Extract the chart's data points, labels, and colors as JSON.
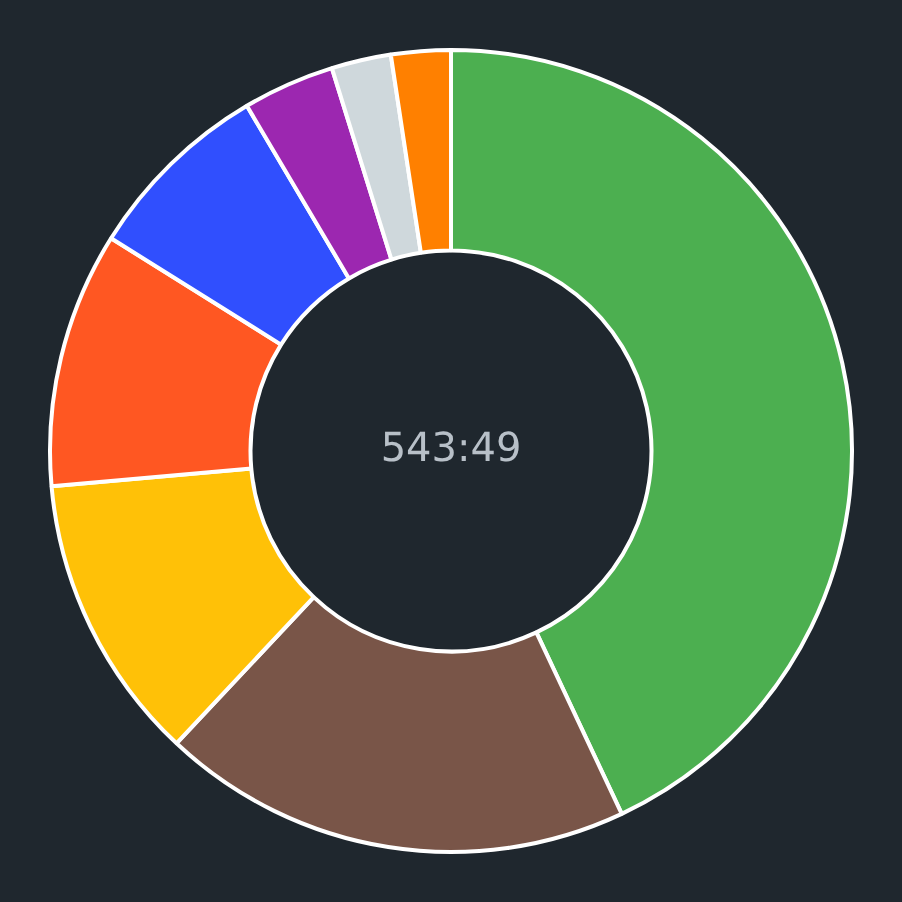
{
  "chart_data": {
    "type": "donut",
    "categories": [
      null,
      null,
      null,
      null,
      null,
      null,
      null,
      null
    ],
    "values": [
      43.0,
      19.0,
      11.6,
      10.3,
      7.6,
      3.7,
      2.4,
      2.4
    ],
    "colors": [
      "#4caf50",
      "#795548",
      "#ffc107",
      "#ff5722",
      "#304ffe",
      "#9c27b0",
      "#cfd8dc",
      "#ff8000"
    ],
    "annotations": [
      "543:49"
    ],
    "legend": false
  }
}
